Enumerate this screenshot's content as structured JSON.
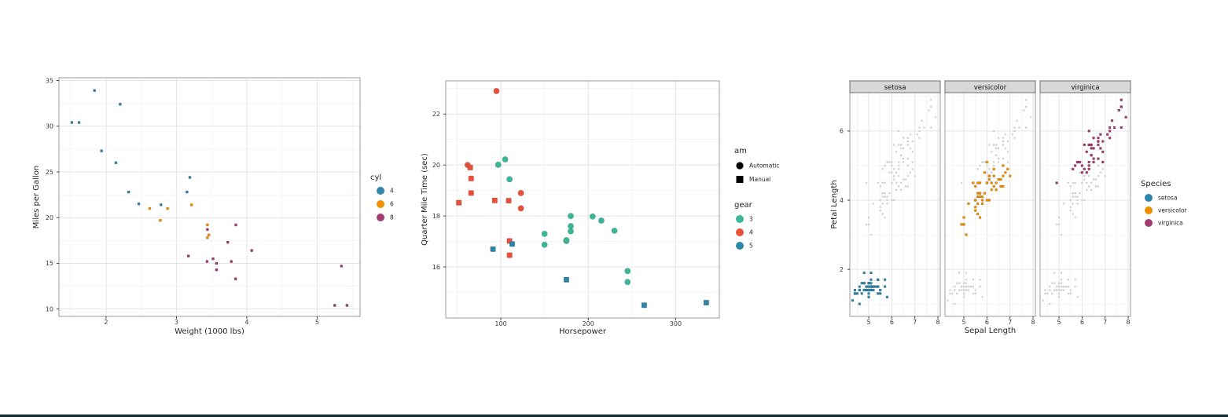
{
  "page": {
    "background": "#ffffff",
    "bottom_bar_color": "#0d2a36"
  },
  "palette": {
    "blue": "#2E86AB",
    "orange": "#F18F01",
    "magenta": "#A23B72",
    "teal": "#3AB795",
    "red": "#E8503A",
    "gray_point": "#d2d2d2",
    "grid_major": "#e4e4e4",
    "grid_minor": "#f2f2f2",
    "panel_border": "#9a9a9a",
    "strip_fill": "#d8d8d8",
    "strip_border": "#6e6e6e",
    "tick_text": "#3a3a3a",
    "title_text": "#262626"
  },
  "chart_data": [
    {
      "id": "mpg-vs-weight",
      "type": "scatter",
      "xlabel": "Weight (1000 lbs)",
      "ylabel": "Miles per Gallon",
      "xlim": [
        1.33,
        5.61
      ],
      "ylim": [
        9.2,
        35.3
      ],
      "xticks": [
        2,
        3,
        4,
        5
      ],
      "yticks": [
        10,
        15,
        20,
        25,
        30,
        35
      ],
      "grid": true,
      "legend": {
        "title": "cyl",
        "position": "right",
        "items": [
          {
            "label": "4",
            "marker": "circle",
            "color": "#2E86AB"
          },
          {
            "label": "6",
            "marker": "circle",
            "color": "#F18F01"
          },
          {
            "label": "8",
            "marker": "circle",
            "color": "#A23B72"
          }
        ]
      },
      "series": [
        {
          "name": "4",
          "color": "#2E86AB",
          "marker": "square",
          "size": 3.2,
          "points": [
            [
              2.32,
              22.8
            ],
            [
              3.19,
              24.4
            ],
            [
              3.15,
              22.8
            ],
            [
              2.2,
              32.4
            ],
            [
              1.615,
              30.4
            ],
            [
              1.835,
              33.9
            ],
            [
              2.465,
              21.5
            ],
            [
              1.935,
              27.3
            ],
            [
              2.14,
              26.0
            ],
            [
              1.513,
              30.4
            ],
            [
              2.78,
              21.4
            ]
          ]
        },
        {
          "name": "6",
          "color": "#F18F01",
          "marker": "square",
          "size": 3.2,
          "points": [
            [
              2.62,
              21.0
            ],
            [
              2.875,
              21.0
            ],
            [
              3.215,
              21.4
            ],
            [
              3.46,
              18.1
            ],
            [
              3.44,
              19.2
            ],
            [
              3.44,
              17.8
            ],
            [
              2.77,
              19.7
            ]
          ]
        },
        {
          "name": "8",
          "color": "#A23B72",
          "marker": "square",
          "size": 3.2,
          "points": [
            [
              3.44,
              18.7
            ],
            [
              3.57,
              14.3
            ],
            [
              4.07,
              16.4
            ],
            [
              3.73,
              17.3
            ],
            [
              3.78,
              15.2
            ],
            [
              5.25,
              10.4
            ],
            [
              5.424,
              10.4
            ],
            [
              5.345,
              14.7
            ],
            [
              3.52,
              15.5
            ],
            [
              3.435,
              15.2
            ],
            [
              3.84,
              13.3
            ],
            [
              3.845,
              19.2
            ],
            [
              3.17,
              15.8
            ],
            [
              3.57,
              15.0
            ]
          ]
        }
      ]
    },
    {
      "id": "qsec-vs-horsepower",
      "type": "scatter",
      "xlabel": "Horsepower",
      "ylabel": "Quarter Mile Time (sec)",
      "xlim": [
        37,
        350
      ],
      "ylim": [
        14.0,
        23.3
      ],
      "xticks": [
        100,
        200,
        300
      ],
      "yticks": [
        16,
        18,
        20,
        22
      ],
      "grid": true,
      "legends": [
        {
          "title": "am",
          "items": [
            {
              "label": "Automatic",
              "marker": "circle",
              "color": "#000000"
            },
            {
              "label": "Manual",
              "marker": "square",
              "color": "#000000"
            }
          ]
        },
        {
          "title": "gear",
          "items": [
            {
              "label": "3",
              "marker": "circle",
              "color": "#3AB795"
            },
            {
              "label": "4",
              "marker": "circle",
              "color": "#E8503A"
            },
            {
              "label": "5",
              "marker": "circle",
              "color": "#2E86AB"
            }
          ]
        }
      ],
      "series": [
        {
          "name": "gear 3 automatic",
          "color": "#3AB795",
          "marker": "circle",
          "size": 7.4,
          "points": [
            [
              110,
              19.44
            ],
            [
              175,
              17.02
            ],
            [
              105,
              20.22
            ],
            [
              245,
              15.84
            ],
            [
              180,
              17.4
            ],
            [
              180,
              17.6
            ],
            [
              180,
              18.0
            ],
            [
              205,
              17.98
            ],
            [
              215,
              17.82
            ],
            [
              230,
              17.42
            ],
            [
              97,
              20.01
            ],
            [
              150,
              16.87
            ],
            [
              150,
              17.3
            ],
            [
              245,
              15.41
            ],
            [
              175,
              17.05
            ]
          ]
        },
        {
          "name": "gear 4 automatic",
          "color": "#E8503A",
          "marker": "circle",
          "size": 7.4,
          "points": [
            [
              62,
              20.0
            ],
            [
              95,
              22.9
            ],
            [
              123,
              18.3
            ],
            [
              123,
              18.9
            ]
          ]
        },
        {
          "name": "gear 4 manual",
          "color": "#E8503A",
          "marker": "square",
          "size": 6.6,
          "points": [
            [
              110,
              16.46
            ],
            [
              110,
              17.02
            ],
            [
              93,
              18.61
            ],
            [
              66,
              19.47
            ],
            [
              52,
              18.52
            ],
            [
              65,
              19.9
            ],
            [
              66,
              18.9
            ],
            [
              109,
              18.6
            ]
          ]
        },
        {
          "name": "gear 5 manual",
          "color": "#2E86AB",
          "marker": "square",
          "size": 6.6,
          "points": [
            [
              91,
              16.7
            ],
            [
              113,
              16.9
            ],
            [
              264,
              14.5
            ],
            [
              175,
              15.5
            ],
            [
              335,
              14.6
            ]
          ]
        }
      ]
    },
    {
      "id": "iris-petal-vs-sepal-faceted",
      "type": "scatter",
      "xlabel": "Sepal Length",
      "ylabel": "Petal Length",
      "xlim": [
        4.18,
        8.1
      ],
      "ylim": [
        0.64,
        7.11
      ],
      "xticks": [
        5,
        6,
        7,
        8
      ],
      "yticks": [
        2,
        4,
        6
      ],
      "grid": true,
      "background_point_color": "#d2d2d2",
      "facets": [
        {
          "label": "setosa"
        },
        {
          "label": "versicolor"
        },
        {
          "label": "virginica"
        }
      ],
      "legend": {
        "title": "Species",
        "items": [
          {
            "label": "setosa",
            "marker": "circle",
            "color": "#2E86AB"
          },
          {
            "label": "versicolor",
            "marker": "circle",
            "color": "#F18F01"
          },
          {
            "label": "virginica",
            "marker": "circle",
            "color": "#A23B72"
          }
        ]
      },
      "series": [
        {
          "name": "setosa",
          "color": "#2E86AB",
          "marker": "square",
          "size": 3.0,
          "points": [
            [
              5.1,
              1.4
            ],
            [
              4.9,
              1.4
            ],
            [
              4.7,
              1.3
            ],
            [
              4.6,
              1.5
            ],
            [
              5.0,
              1.4
            ],
            [
              5.4,
              1.7
            ],
            [
              4.6,
              1.4
            ],
            [
              5.0,
              1.5
            ],
            [
              4.4,
              1.4
            ],
            [
              4.9,
              1.5
            ],
            [
              5.4,
              1.5
            ],
            [
              4.8,
              1.6
            ],
            [
              4.8,
              1.4
            ],
            [
              4.3,
              1.1
            ],
            [
              5.8,
              1.2
            ],
            [
              5.7,
              1.5
            ],
            [
              5.4,
              1.3
            ],
            [
              5.1,
              1.4
            ],
            [
              5.7,
              1.7
            ],
            [
              5.1,
              1.5
            ],
            [
              5.4,
              1.7
            ],
            [
              5.1,
              1.5
            ],
            [
              4.6,
              1.0
            ],
            [
              5.1,
              1.7
            ],
            [
              4.8,
              1.9
            ],
            [
              5.0,
              1.6
            ],
            [
              5.0,
              1.6
            ],
            [
              5.2,
              1.5
            ],
            [
              5.2,
              1.4
            ],
            [
              4.7,
              1.6
            ],
            [
              4.8,
              1.6
            ],
            [
              5.4,
              1.5
            ],
            [
              5.2,
              1.5
            ],
            [
              5.5,
              1.4
            ],
            [
              4.9,
              1.5
            ],
            [
              5.0,
              1.2
            ],
            [
              5.5,
              1.3
            ],
            [
              4.9,
              1.4
            ],
            [
              4.4,
              1.3
            ],
            [
              5.1,
              1.5
            ],
            [
              5.0,
              1.3
            ],
            [
              4.5,
              1.3
            ],
            [
              4.4,
              1.3
            ],
            [
              5.0,
              1.6
            ],
            [
              5.1,
              1.9
            ],
            [
              4.8,
              1.4
            ],
            [
              5.1,
              1.6
            ],
            [
              4.6,
              1.4
            ],
            [
              5.3,
              1.5
            ],
            [
              5.0,
              1.4
            ]
          ]
        },
        {
          "name": "versicolor",
          "color": "#F18F01",
          "marker": "square",
          "size": 3.0,
          "points": [
            [
              7.0,
              4.7
            ],
            [
              6.4,
              4.5
            ],
            [
              6.9,
              4.9
            ],
            [
              5.5,
              4.0
            ],
            [
              6.5,
              4.6
            ],
            [
              5.7,
              4.5
            ],
            [
              6.3,
              4.7
            ],
            [
              4.9,
              3.3
            ],
            [
              6.6,
              4.6
            ],
            [
              5.2,
              3.9
            ],
            [
              5.0,
              3.5
            ],
            [
              5.9,
              4.2
            ],
            [
              6.0,
              4.0
            ],
            [
              6.1,
              4.7
            ],
            [
              5.6,
              3.6
            ],
            [
              6.7,
              4.4
            ],
            [
              5.6,
              4.5
            ],
            [
              5.8,
              4.1
            ],
            [
              6.2,
              4.5
            ],
            [
              5.6,
              3.9
            ],
            [
              5.9,
              4.8
            ],
            [
              6.1,
              4.0
            ],
            [
              6.3,
              4.9
            ],
            [
              6.1,
              4.7
            ],
            [
              6.4,
              4.3
            ],
            [
              6.6,
              4.4
            ],
            [
              6.8,
              4.8
            ],
            [
              6.7,
              5.0
            ],
            [
              6.0,
              4.5
            ],
            [
              5.7,
              3.5
            ],
            [
              5.5,
              3.8
            ],
            [
              5.5,
              3.7
            ],
            [
              5.8,
              3.9
            ],
            [
              6.0,
              5.1
            ],
            [
              5.4,
              4.5
            ],
            [
              6.0,
              4.5
            ],
            [
              6.7,
              4.7
            ],
            [
              6.3,
              4.4
            ],
            [
              5.6,
              4.1
            ],
            [
              5.5,
              4.0
            ],
            [
              5.5,
              4.4
            ],
            [
              6.1,
              4.6
            ],
            [
              5.8,
              4.0
            ],
            [
              5.0,
              3.3
            ],
            [
              5.6,
              4.2
            ],
            [
              5.7,
              4.2
            ],
            [
              5.7,
              4.2
            ],
            [
              6.2,
              4.3
            ],
            [
              5.1,
              3.0
            ],
            [
              5.7,
              4.1
            ]
          ]
        },
        {
          "name": "virginica",
          "color": "#A23B72",
          "marker": "square",
          "size": 3.0,
          "points": [
            [
              6.3,
              6.0
            ],
            [
              5.8,
              5.1
            ],
            [
              7.1,
              5.9
            ],
            [
              6.3,
              5.6
            ],
            [
              6.5,
              5.8
            ],
            [
              7.6,
              6.6
            ],
            [
              4.9,
              4.5
            ],
            [
              7.3,
              6.3
            ],
            [
              6.7,
              5.8
            ],
            [
              7.2,
              6.1
            ],
            [
              6.5,
              5.1
            ],
            [
              6.4,
              5.3
            ],
            [
              6.8,
              5.5
            ],
            [
              5.7,
              5.0
            ],
            [
              5.8,
              5.1
            ],
            [
              6.4,
              5.3
            ],
            [
              6.5,
              5.5
            ],
            [
              7.7,
              6.7
            ],
            [
              7.7,
              6.9
            ],
            [
              6.0,
              5.0
            ],
            [
              6.9,
              5.7
            ],
            [
              5.6,
              4.9
            ],
            [
              7.7,
              6.7
            ],
            [
              6.3,
              4.9
            ],
            [
              6.7,
              5.7
            ],
            [
              7.2,
              6.0
            ],
            [
              6.2,
              4.8
            ],
            [
              6.1,
              4.9
            ],
            [
              6.4,
              5.6
            ],
            [
              7.2,
              5.8
            ],
            [
              7.4,
              6.1
            ],
            [
              7.9,
              6.4
            ],
            [
              6.4,
              5.6
            ],
            [
              6.3,
              5.1
            ],
            [
              6.1,
              5.6
            ],
            [
              7.7,
              6.1
            ],
            [
              6.3,
              5.6
            ],
            [
              6.4,
              5.5
            ],
            [
              6.0,
              4.8
            ],
            [
              6.9,
              5.4
            ],
            [
              6.7,
              5.6
            ],
            [
              6.9,
              5.1
            ],
            [
              5.8,
              5.1
            ],
            [
              6.8,
              5.9
            ],
            [
              6.7,
              5.7
            ],
            [
              6.7,
              5.2
            ],
            [
              6.3,
              5.0
            ],
            [
              6.5,
              5.2
            ],
            [
              6.2,
              5.4
            ],
            [
              5.9,
              5.1
            ]
          ]
        }
      ]
    }
  ]
}
